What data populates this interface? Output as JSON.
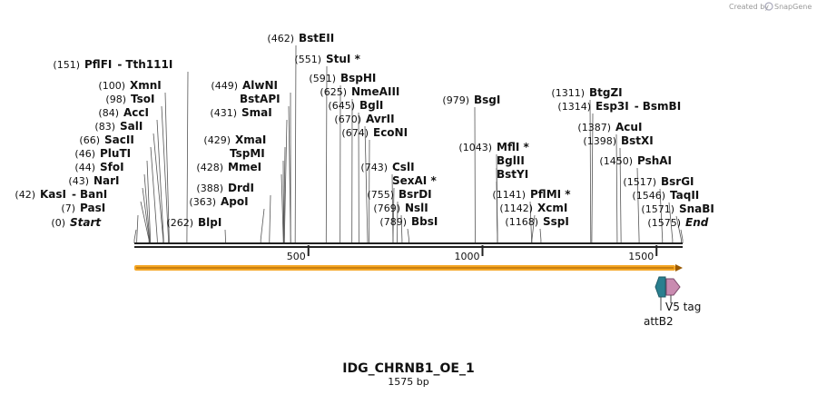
{
  "credit": {
    "prefix": "Created by",
    "brand": "SnapGene"
  },
  "plasmid": {
    "name": "IDG_CHRNB1_OE_1",
    "size_label": "1575 bp",
    "length_bp": 1575
  },
  "ruler": {
    "ticks": [
      500,
      1000,
      1500
    ]
  },
  "colors": {
    "backbone": "#222222",
    "orf": "#f5a623",
    "attb2": "#2a7f8f",
    "v5tag": "#c98bb0"
  },
  "sites": [
    {
      "name": "Start",
      "pos": "(0)",
      "bp": 0,
      "italic": true
    },
    {
      "name": "PasI",
      "pos": "(7)",
      "bp": 7
    },
    {
      "name": "KasI",
      "pos": "(42)",
      "bp": 42,
      "name2": "BanI"
    },
    {
      "name": "NarI",
      "pos": "(43)",
      "bp": 43
    },
    {
      "name": "SfoI",
      "pos": "(44)",
      "bp": 44
    },
    {
      "name": "PluTI",
      "pos": "(46)",
      "bp": 46
    },
    {
      "name": "SacII",
      "pos": "(66)",
      "bp": 66
    },
    {
      "name": "SalI",
      "pos": "(83)",
      "bp": 83
    },
    {
      "name": "AccI",
      "pos": "(84)",
      "bp": 84
    },
    {
      "name": "TsoI",
      "pos": "(98)",
      "bp": 98
    },
    {
      "name": "XmnI",
      "pos": "(100)",
      "bp": 100
    },
    {
      "name": "PflFI",
      "pos": "(151)",
      "bp": 151,
      "name2": "Tth111I"
    },
    {
      "name": "BlpI",
      "pos": "(262)",
      "bp": 262
    },
    {
      "name": "ApoI",
      "pos": "(363)",
      "bp": 363
    },
    {
      "name": "DrdI",
      "pos": "(388)",
      "bp": 388
    },
    {
      "name": "MmeI",
      "pos": "(428)",
      "bp": 428
    },
    {
      "name": "TspMI",
      "pos": "",
      "bp": 429
    },
    {
      "name": "XmaI",
      "pos": "(429)",
      "bp": 429
    },
    {
      "name": "SmaI",
      "pos": "(431)",
      "bp": 431
    },
    {
      "name": "BstAPI",
      "pos": "",
      "bp": 449
    },
    {
      "name": "AlwNI",
      "pos": "(449)",
      "bp": 449
    },
    {
      "name": "BstEII",
      "pos": "(462)",
      "bp": 462
    },
    {
      "name": "StuI *",
      "pos": "(551)",
      "bp": 551
    },
    {
      "name": "BspHI",
      "pos": "(591)",
      "bp": 591
    },
    {
      "name": "NmeAIII",
      "pos": "(625)",
      "bp": 625
    },
    {
      "name": "BglI",
      "pos": "(645)",
      "bp": 645
    },
    {
      "name": "AvrII",
      "pos": "(670)",
      "bp": 670
    },
    {
      "name": "EcoNI",
      "pos": "(674)",
      "bp": 674
    },
    {
      "name": "CslI",
      "pos": "(743)",
      "bp": 743
    },
    {
      "name": "SexAI *",
      "pos": "",
      "bp": 743
    },
    {
      "name": "BsrDI",
      "pos": "(755)",
      "bp": 755
    },
    {
      "name": "NslI",
      "pos": "(769)",
      "bp": 769
    },
    {
      "name": "BbsI",
      "pos": "(789)",
      "bp": 789
    },
    {
      "name": "BsgI",
      "pos": "(979)",
      "bp": 979
    },
    {
      "name": "MflI *",
      "pos": "(1043)",
      "bp": 1043
    },
    {
      "name": "BglII",
      "pos": "",
      "bp": 1043
    },
    {
      "name": "BstYI",
      "pos": "",
      "bp": 1043
    },
    {
      "name": "PflMI *",
      "pos": "(1141)",
      "bp": 1141
    },
    {
      "name": "XcmI",
      "pos": "(1142)",
      "bp": 1142
    },
    {
      "name": "SspI",
      "pos": "(1168)",
      "bp": 1168
    },
    {
      "name": "BtgZI",
      "pos": "(1311)",
      "bp": 1311
    },
    {
      "name": "Esp3I",
      "pos": "(1314)",
      "bp": 1314,
      "name2": "BsmBI"
    },
    {
      "name": "AcuI",
      "pos": "(1387)",
      "bp": 1387
    },
    {
      "name": "BstXI",
      "pos": "(1398)",
      "bp": 1398
    },
    {
      "name": "PshAI",
      "pos": "(1450)",
      "bp": 1450
    },
    {
      "name": "BsrGI",
      "pos": "(1517)",
      "bp": 1517
    },
    {
      "name": "TaqII",
      "pos": "(1546)",
      "bp": 1546
    },
    {
      "name": "SnaBI",
      "pos": "(1571)",
      "bp": 1571
    },
    {
      "name": "End",
      "pos": "(1575)",
      "bp": 1575,
      "italic": true
    }
  ],
  "features": [
    {
      "name": "attB2",
      "kind": "attb2"
    },
    {
      "name": "V5 tag",
      "kind": "v5tag"
    }
  ]
}
